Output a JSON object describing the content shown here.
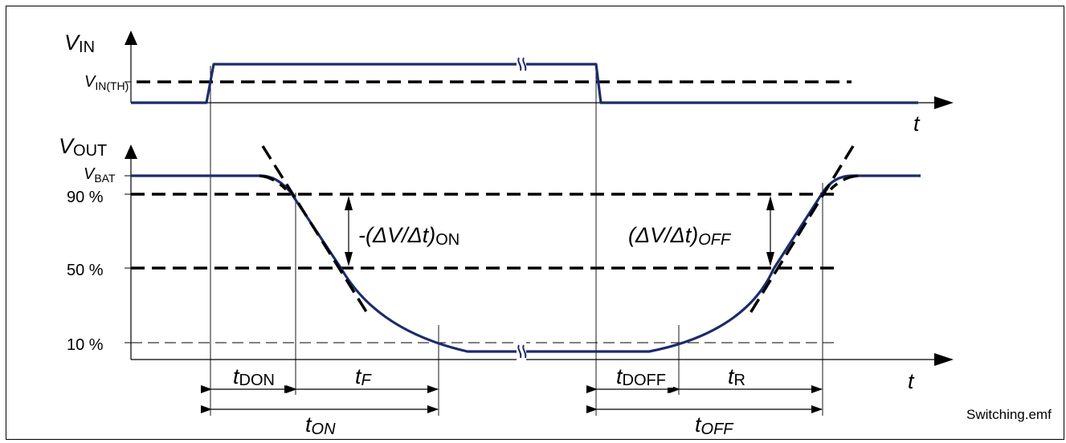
{
  "diagram": {
    "vin": {
      "symbol": "V",
      "subscript": "IN"
    },
    "vin_th": {
      "symbol": "V",
      "subscript": "IN(TH)"
    },
    "vout": {
      "symbol": "V",
      "subscript": "OUT"
    },
    "vbat": {
      "symbol": "V",
      "subscript": "BAT"
    },
    "time_axis_top": "t",
    "time_axis_bottom": "t",
    "levels": {
      "p90": "90 %",
      "p50": "50 %",
      "p10": "10 %"
    },
    "slope_on": {
      "text": "-(ΔV/Δt)",
      "subscript": "ON"
    },
    "slope_off": {
      "text": "(ΔV/Δt)",
      "subscript": "OFF"
    },
    "intervals": {
      "tdon": {
        "symbol": "t",
        "subscript": "DON"
      },
      "tf": {
        "symbol": "t",
        "subscript": "F"
      },
      "tdoff": {
        "symbol": "t",
        "subscript": "DOFF"
      },
      "tr": {
        "symbol": "t",
        "subscript": "R"
      },
      "ton": {
        "symbol": "t",
        "subscript": "ON"
      },
      "toff": {
        "symbol": "t",
        "subscript": "OFF"
      }
    },
    "footer": "Switching.emf",
    "colors": {
      "signal": "#1c2b6b",
      "ink": "#000000"
    }
  }
}
